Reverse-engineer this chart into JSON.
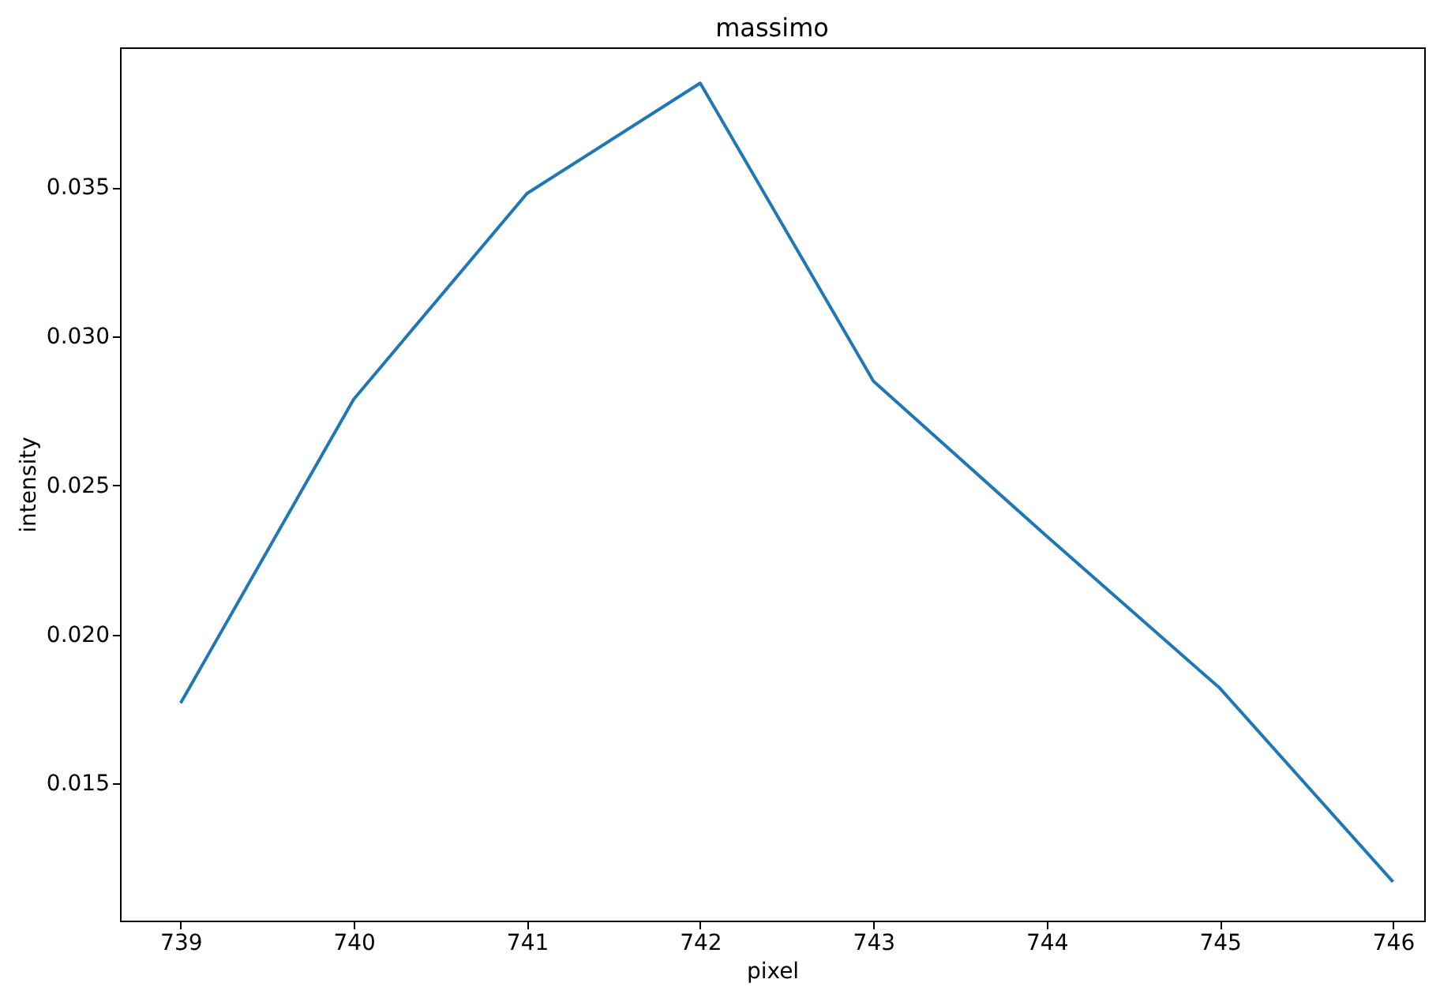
{
  "chart_data": {
    "type": "line",
    "title": "massimo",
    "xlabel": "pixel",
    "ylabel": "intensity",
    "x": [
      739,
      740,
      741,
      742,
      743,
      744,
      745,
      746
    ],
    "series": [
      {
        "color": "#1f77b4",
        "values": [
          0.0177,
          0.0279,
          0.0348,
          0.0385,
          0.0285,
          0.0233,
          0.0182,
          0.0117
        ]
      }
    ],
    "xlim": [
      738.65,
      746.18
    ],
    "ylim": [
      0.0104,
      0.0397
    ],
    "xticks": [
      739,
      740,
      741,
      742,
      743,
      744,
      745,
      746
    ],
    "yticks": [
      {
        "value": 0.015,
        "label": "0.015"
      },
      {
        "value": 0.02,
        "label": "0.020"
      },
      {
        "value": 0.025,
        "label": "0.025"
      },
      {
        "value": 0.03,
        "label": "0.030"
      },
      {
        "value": 0.035,
        "label": "0.035"
      }
    ],
    "grid": false
  }
}
